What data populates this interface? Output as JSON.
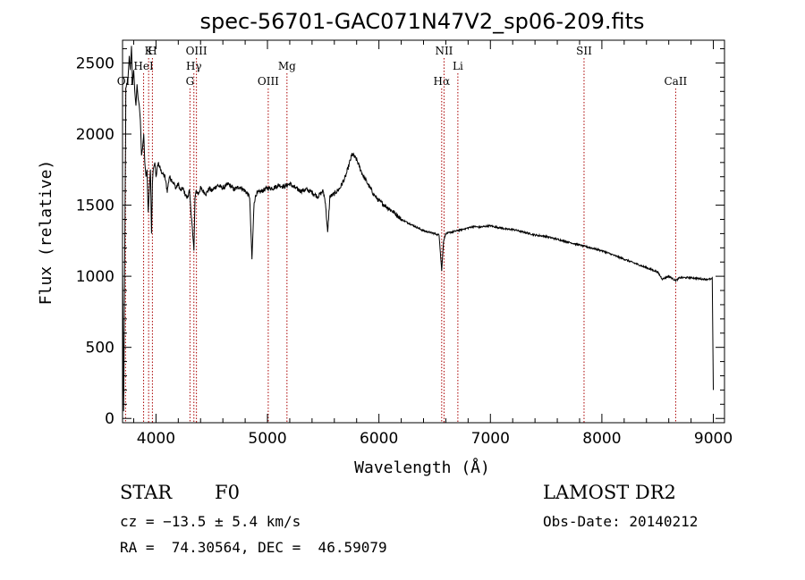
{
  "chart_data": {
    "type": "line",
    "title": "spec-56701-GAC071N47V2_sp06-209.fits",
    "xlabel": "Wavelength (Å)",
    "ylabel": "Flux (relative)",
    "xlim": [
      3700,
      9100
    ],
    "ylim": [
      -30,
      2660
    ],
    "xticks": [
      4000,
      5000,
      6000,
      7000,
      8000,
      9000
    ],
    "xtick_labels": [
      "4000",
      "5000",
      "6000",
      "7000",
      "8000",
      "9000"
    ],
    "yticks": [
      0,
      500,
      1000,
      1500,
      2000,
      2500
    ],
    "ytick_labels": [
      "0",
      "500",
      "1000",
      "1500",
      "2000",
      "2500"
    ],
    "grid": false,
    "series": [
      {
        "x": [
          3700,
          3705,
          3710,
          3730,
          3750,
          3760,
          3770,
          3780,
          3790,
          3800,
          3810,
          3820,
          3830,
          3840,
          3850,
          3860,
          3870,
          3880,
          3890,
          3900,
          3910,
          3920,
          3930,
          3940,
          3950,
          3960,
          3968,
          3975,
          3990,
          4000,
          4020,
          4040,
          4060,
          4080,
          4101,
          4120,
          4140,
          4160,
          4180,
          4200,
          4220,
          4240,
          4260,
          4280,
          4300,
          4320,
          4340,
          4350,
          4360,
          4380,
          4400,
          4420,
          4450,
          4480,
          4500,
          4550,
          4600,
          4650,
          4700,
          4750,
          4800,
          4840,
          4861,
          4880,
          4900,
          4950,
          5000,
          5050,
          5100,
          5150,
          5200,
          5250,
          5300,
          5350,
          5400,
          5450,
          5500,
          5520,
          5540,
          5560,
          5600,
          5650,
          5700,
          5730,
          5760,
          5800,
          5850,
          5900,
          5950,
          6000,
          6050,
          6100,
          6150,
          6200,
          6250,
          6300,
          6350,
          6400,
          6450,
          6500,
          6540,
          6563,
          6580,
          6600,
          6650,
          6700,
          6750,
          6800,
          6850,
          6900,
          6950,
          7000,
          7050,
          7100,
          7150,
          7200,
          7300,
          7400,
          7500,
          7600,
          7700,
          7800,
          7900,
          8000,
          8100,
          8200,
          8300,
          8400,
          8500,
          8542,
          8600,
          8662,
          8700,
          8800,
          8900,
          8980,
          8990,
          9000
        ],
        "y": [
          1100,
          600,
          40,
          2300,
          2400,
          2550,
          2450,
          2620,
          2350,
          2450,
          2300,
          2200,
          2350,
          2250,
          2200,
          2100,
          1850,
          1900,
          2000,
          1800,
          1700,
          1750,
          1450,
          1600,
          1750,
          1300,
          1650,
          1750,
          1800,
          1700,
          1800,
          1750,
          1720,
          1700,
          1600,
          1700,
          1680,
          1650,
          1620,
          1650,
          1600,
          1620,
          1580,
          1550,
          1600,
          1400,
          1180,
          1550,
          1600,
          1580,
          1620,
          1600,
          1580,
          1620,
          1600,
          1640,
          1620,
          1650,
          1610,
          1630,
          1600,
          1560,
          1120,
          1520,
          1580,
          1600,
          1620,
          1620,
          1640,
          1630,
          1650,
          1620,
          1600,
          1610,
          1590,
          1560,
          1600,
          1520,
          1300,
          1560,
          1580,
          1620,
          1700,
          1780,
          1860,
          1820,
          1720,
          1650,
          1580,
          1530,
          1500,
          1470,
          1440,
          1400,
          1380,
          1360,
          1340,
          1320,
          1310,
          1300,
          1290,
          1040,
          1250,
          1300,
          1310,
          1320,
          1330,
          1340,
          1350,
          1345,
          1350,
          1355,
          1345,
          1340,
          1330,
          1330,
          1310,
          1290,
          1280,
          1260,
          1240,
          1220,
          1200,
          1180,
          1150,
          1120,
          1090,
          1060,
          1030,
          980,
          1000,
          970,
          990,
          990,
          980,
          980,
          990,
          200
        ]
      }
    ],
    "spectral_lines": [
      {
        "name": "OII",
        "wavelength": 3727,
        "row": 3
      },
      {
        "name": "HeI",
        "wavelength": 3889,
        "row": 2
      },
      {
        "name": "K",
        "wavelength": 3934,
        "row": 1
      },
      {
        "name": "H",
        "wavelength": 3968,
        "row": 1
      },
      {
        "name": "G",
        "wavelength": 4305,
        "row": 3
      },
      {
        "name": "Hγ",
        "wavelength": 4340,
        "row": 2
      },
      {
        "name": "OIII",
        "wavelength": 4363,
        "row": 1
      },
      {
        "name": "OIII",
        "wavelength": 5007,
        "row": 3
      },
      {
        "name": "Mg",
        "wavelength": 5175,
        "row": 2
      },
      {
        "name": "Hα",
        "wavelength": 6563,
        "row": 3
      },
      {
        "name": "NII",
        "wavelength": 6584,
        "row": 1
      },
      {
        "name": "Li",
        "wavelength": 6708,
        "row": 2
      },
      {
        "name": "SII",
        "wavelength": 7840,
        "row": 1
      },
      {
        "name": "CaII",
        "wavelength": 8662,
        "row": 3
      }
    ]
  },
  "info": {
    "class": "STAR",
    "subclass": "F0",
    "survey": "LAMOST DR2",
    "cz": "cz = −13.5 ± 5.4 km/s",
    "obs_date": "Obs-Date: 20140212",
    "radec": "RA =  74.30564, DEC =  46.59079"
  },
  "colors": {
    "spectrum": "#000000",
    "line_marker": "#aa0000"
  }
}
